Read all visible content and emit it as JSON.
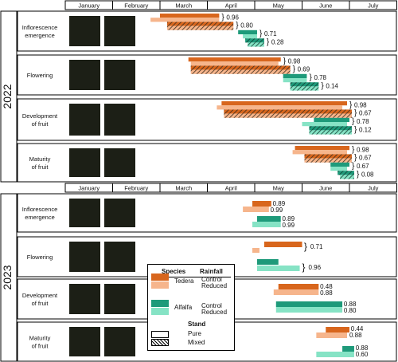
{
  "colors": {
    "tedera_control": "#D8661D",
    "tedera_reduced": "#F6B58C",
    "alfalfa_control": "#1E9A7A",
    "alfalfa_reduced": "#86E3C5",
    "pattern": "#3a2a1a"
  },
  "chart_data": [
    {
      "type": "gantt",
      "year_label": "2022",
      "months": [
        "January",
        "February",
        "March",
        "April",
        "May",
        "June",
        "July"
      ],
      "stages": [
        {
          "label_lines": [
            "Inflorescence",
            "emergence"
          ],
          "bars": [
            {
              "series": "tedera_control",
              "stand": "pure",
              "start": 2.0,
              "end": 3.25
            },
            {
              "series": "tedera_reduced",
              "stand": "pure",
              "start": 1.8,
              "end": 3.25
            },
            {
              "series": "tedera_control",
              "stand": "mixed",
              "start": 2.15,
              "end": 3.55
            },
            {
              "series": "tedera_reduced",
              "stand": "mixed",
              "start": 2.15,
              "end": 3.55
            },
            {
              "series": "alfalfa_control",
              "stand": "pure",
              "start": 3.65,
              "end": 4.05
            },
            {
              "series": "alfalfa_reduced",
              "stand": "pure",
              "start": 3.75,
              "end": 4.05
            },
            {
              "series": "alfalfa_control",
              "stand": "mixed",
              "start": 3.8,
              "end": 4.2
            },
            {
              "series": "alfalfa_reduced",
              "stand": "mixed",
              "start": 3.85,
              "end": 4.2
            }
          ],
          "values": [
            "0.96",
            "0.80",
            "0.71",
            "0.28"
          ]
        },
        {
          "label_lines": [
            "Flowering"
          ],
          "bars": [
            {
              "series": "tedera_control",
              "stand": "pure",
              "start": 2.6,
              "end": 4.55
            },
            {
              "series": "tedera_reduced",
              "stand": "pure",
              "start": 2.65,
              "end": 4.5
            },
            {
              "series": "tedera_control",
              "stand": "mixed",
              "start": 2.65,
              "end": 4.75
            },
            {
              "series": "tedera_reduced",
              "stand": "mixed",
              "start": 2.65,
              "end": 4.75
            },
            {
              "series": "alfalfa_control",
              "stand": "pure",
              "start": 4.6,
              "end": 5.1
            },
            {
              "series": "alfalfa_reduced",
              "stand": "pure",
              "start": 4.6,
              "end": 5.1
            },
            {
              "series": "alfalfa_control",
              "stand": "mixed",
              "start": 4.75,
              "end": 5.35
            },
            {
              "series": "alfalfa_reduced",
              "stand": "mixed",
              "start": 4.75,
              "end": 5.35
            }
          ],
          "values": [
            "0.98",
            "0.69",
            "0.78",
            "0.14"
          ]
        },
        {
          "label_lines": [
            "Development",
            "of fruit"
          ],
          "bars": [
            {
              "series": "tedera_control",
              "stand": "pure",
              "start": 3.3,
              "end": 5.95
            },
            {
              "series": "tedera_reduced",
              "stand": "pure",
              "start": 3.2,
              "end": 5.85
            },
            {
              "series": "tedera_control",
              "stand": "mixed",
              "start": 3.35,
              "end": 6.05
            },
            {
              "series": "tedera_reduced",
              "stand": "mixed",
              "start": 3.35,
              "end": 6.05
            },
            {
              "series": "alfalfa_control",
              "stand": "pure",
              "start": 5.25,
              "end": 6.0
            },
            {
              "series": "alfalfa_reduced",
              "stand": "pure",
              "start": 5.0,
              "end": 5.95
            },
            {
              "series": "alfalfa_control",
              "stand": "mixed",
              "start": 5.15,
              "end": 6.05
            },
            {
              "series": "alfalfa_reduced",
              "stand": "mixed",
              "start": 5.15,
              "end": 6.05
            }
          ],
          "values": [
            "0.98",
            "0.67",
            "0.78",
            "0.12"
          ]
        },
        {
          "label_lines": [
            "Maturity",
            "of fruit"
          ],
          "bars": [
            {
              "series": "tedera_control",
              "stand": "pure",
              "start": 4.85,
              "end": 6.0
            },
            {
              "series": "tedera_reduced",
              "stand": "pure",
              "start": 4.8,
              "end": 5.95
            },
            {
              "series": "tedera_control",
              "stand": "mixed",
              "start": 5.05,
              "end": 6.05
            },
            {
              "series": "tedera_reduced",
              "stand": "mixed",
              "start": 5.05,
              "end": 6.05
            },
            {
              "series": "alfalfa_control",
              "stand": "pure",
              "start": 5.6,
              "end": 6.0
            },
            {
              "series": "alfalfa_reduced",
              "stand": "pure",
              "start": 5.6,
              "end": 5.95
            },
            {
              "series": "alfalfa_control",
              "stand": "mixed",
              "start": 5.75,
              "end": 6.1
            },
            {
              "series": "alfalfa_reduced",
              "stand": "mixed",
              "start": 5.8,
              "end": 6.1
            }
          ],
          "values": [
            "0.98",
            "0.67",
            "0.67",
            "0.08"
          ]
        }
      ]
    },
    {
      "type": "gantt",
      "year_label": "2023",
      "months": [
        "January",
        "February",
        "March",
        "April",
        "May",
        "June",
        "July"
      ],
      "stages": [
        {
          "label_lines": [
            "Inflorescence",
            "emergence"
          ],
          "bars": [
            {
              "series": "tedera_control",
              "stand": "pure",
              "start": 3.95,
              "end": 4.35
            },
            {
              "series": "tedera_reduced",
              "stand": "pure",
              "start": 3.75,
              "end": 4.3
            },
            {
              "series": "alfalfa_control",
              "stand": "pure",
              "start": 4.05,
              "end": 4.55
            },
            {
              "series": "alfalfa_reduced",
              "stand": "pure",
              "start": 3.95,
              "end": 4.55
            }
          ],
          "values": [
            "0.89",
            "0.99",
            "0.89",
            "0.99"
          ]
        },
        {
          "label_lines": [
            "Flowering"
          ],
          "bars": [
            {
              "series": "tedera_control",
              "stand": "pure",
              "start": 4.2,
              "end": 5.0
            },
            {
              "series": "tedera_reduced",
              "stand": "pure",
              "start": 3.95,
              "end": 4.1
            },
            {
              "series": "alfalfa_control",
              "stand": "pure",
              "start": 4.05,
              "end": 4.5
            },
            {
              "series": "alfalfa_reduced",
              "stand": "pure",
              "start": 4.05,
              "end": 4.95
            }
          ],
          "values": [
            "0.71",
            "0.96"
          ]
        },
        {
          "label_lines": [
            "Development",
            "of fruit"
          ],
          "bars": [
            {
              "series": "tedera_control",
              "stand": "pure",
              "start": 4.5,
              "end": 5.35
            },
            {
              "series": "tedera_reduced",
              "stand": "pure",
              "start": 4.4,
              "end": 5.35
            },
            {
              "series": "alfalfa_control",
              "stand": "pure",
              "start": 4.45,
              "end": 5.85
            },
            {
              "series": "alfalfa_reduced",
              "stand": "pure",
              "start": 4.45,
              "end": 5.85
            }
          ],
          "values": [
            "0.48",
            "0.88",
            "0.88",
            "0.80"
          ]
        },
        {
          "label_lines": [
            "Maturity",
            "of fruit"
          ],
          "bars": [
            {
              "series": "tedera_control",
              "stand": "pure",
              "start": 5.5,
              "end": 6.0
            },
            {
              "series": "tedera_reduced",
              "stand": "pure",
              "start": 5.3,
              "end": 5.95
            },
            {
              "series": "alfalfa_control",
              "stand": "pure",
              "start": 5.85,
              "end": 6.1
            },
            {
              "series": "alfalfa_reduced",
              "stand": "pure",
              "start": 5.3,
              "end": 6.1
            }
          ],
          "values": [
            "0.44",
            "0.88",
            "0.88",
            "0.60"
          ]
        }
      ]
    }
  ],
  "legend": {
    "species_header": "Species",
    "rainfall_header": "Rainfall",
    "stand_header": "Stand",
    "tedera": "Tedera",
    "alfalfa": "Alfalfa",
    "control": "Control",
    "reduced": "Reduced",
    "pure": "Pure",
    "mixed": "Mixed"
  }
}
